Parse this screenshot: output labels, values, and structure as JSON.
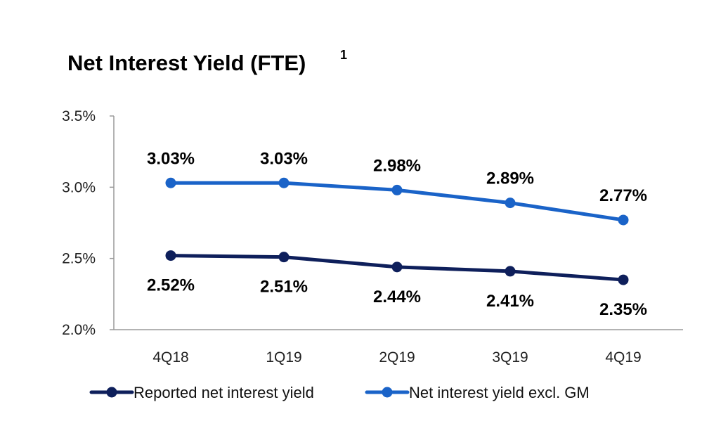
{
  "chart_data": {
    "type": "line",
    "title": "Net Interest Yield (FTE)",
    "title_superscript": "1",
    "categories": [
      "4Q18",
      "1Q19",
      "2Q19",
      "3Q19",
      "4Q19"
    ],
    "ylim": [
      2.0,
      3.5
    ],
    "yticks": [
      2.0,
      2.5,
      3.0,
      3.5
    ],
    "ytick_labels": [
      "2.0%",
      "2.5%",
      "3.0%",
      "3.5%"
    ],
    "grid": false,
    "legend_position": "bottom",
    "series": [
      {
        "name": "Reported net interest yield",
        "color": "#0e1f5b",
        "values": [
          2.52,
          2.51,
          2.44,
          2.41,
          2.35
        ],
        "labels": [
          "2.52%",
          "2.51%",
          "2.44%",
          "2.41%",
          "2.35%"
        ],
        "label_position": "below"
      },
      {
        "name": "Net interest yield excl. GM",
        "color": "#1a63c8",
        "values": [
          3.03,
          3.03,
          2.98,
          2.89,
          2.77
        ],
        "labels": [
          "3.03%",
          "3.03%",
          "2.98%",
          "2.89%",
          "2.77%"
        ],
        "label_position": "above"
      }
    ]
  }
}
